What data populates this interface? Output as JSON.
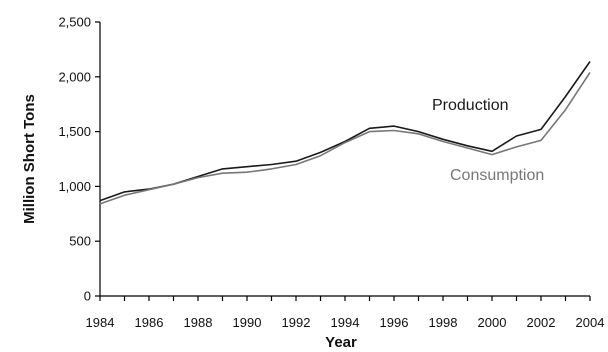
{
  "chart_data": {
    "type": "line",
    "title": "",
    "xlabel": "Year",
    "ylabel": "Million Short Tons",
    "xlim": [
      1984,
      2004
    ],
    "ylim": [
      0,
      2500
    ],
    "x_ticks": [
      "1984",
      "1986",
      "1988",
      "1990",
      "1992",
      "1994",
      "1996",
      "1998",
      "2000",
      "2002",
      "2004"
    ],
    "y_ticks": [
      "0",
      "500",
      "1,000",
      "1,500",
      "2,000",
      "2,500"
    ],
    "grid": false,
    "legend": "none",
    "x": [
      1984,
      1985,
      1986,
      1987,
      1988,
      1989,
      1990,
      1991,
      1992,
      1993,
      1994,
      1995,
      1996,
      1997,
      1998,
      1999,
      2000,
      2001,
      2002,
      2003,
      2004
    ],
    "series": [
      {
        "name": "Production",
        "color": "#1a1a1a",
        "values": [
          870,
          950,
          975,
          1020,
          1090,
          1160,
          1180,
          1200,
          1230,
          1310,
          1410,
          1530,
          1550,
          1500,
          1430,
          1370,
          1320,
          1460,
          1520,
          1820,
          2140
        ]
      },
      {
        "name": "Consumption",
        "color": "#777777",
        "values": [
          840,
          920,
          970,
          1020,
          1080,
          1120,
          1130,
          1160,
          1200,
          1280,
          1400,
          1500,
          1510,
          1480,
          1410,
          1350,
          1290,
          1360,
          1420,
          1700,
          2040
        ]
      }
    ]
  }
}
